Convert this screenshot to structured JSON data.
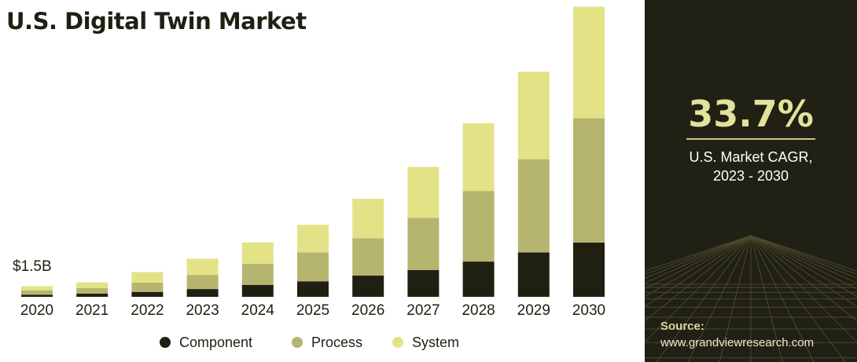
{
  "title": "U.S. Digital Twin Market",
  "first_bar_label": "$1.5B",
  "chart_data": {
    "type": "bar",
    "stacked": true,
    "title": "U.S. Digital Twin Market",
    "categories": [
      "2020",
      "2021",
      "2022",
      "2023",
      "2024",
      "2025",
      "2026",
      "2027",
      "2028",
      "2029",
      "2030"
    ],
    "series": [
      {
        "name": "Component",
        "color": "#1f1f12",
        "values": [
          0.3,
          0.45,
          0.7,
          1.1,
          1.7,
          2.2,
          3.0,
          3.8,
          5.0,
          6.3,
          7.7
        ]
      },
      {
        "name": "Process",
        "color": "#b6b56f",
        "values": [
          0.6,
          0.8,
          1.3,
          2.0,
          3.0,
          4.1,
          5.3,
          7.4,
          10.0,
          13.2,
          17.6
        ]
      },
      {
        "name": "System",
        "color": "#e3e286",
        "values": [
          0.6,
          0.8,
          1.5,
          2.3,
          3.0,
          3.9,
          5.6,
          7.2,
          9.6,
          12.4,
          15.8
        ]
      }
    ],
    "ymax": 41.5,
    "legend_position": "bottom",
    "grid": false
  },
  "cagr": {
    "value": "33.7%",
    "label_line1": "U.S. Market CAGR,",
    "label_line2": "2023 - 2030"
  },
  "source": {
    "title": "Source:",
    "url": "www.grandviewresearch.com"
  }
}
